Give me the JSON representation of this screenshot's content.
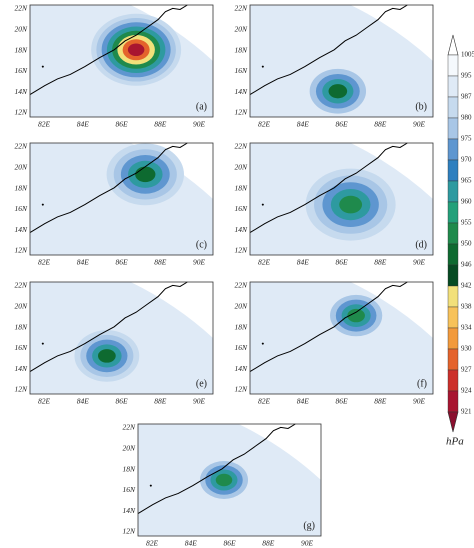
{
  "panels": [
    {
      "label": "(a)"
    },
    {
      "label": "(b)"
    },
    {
      "label": "(c)"
    },
    {
      "label": "(d)"
    },
    {
      "label": "(e)"
    },
    {
      "label": "(f)"
    },
    {
      "label": "(g)"
    }
  ],
  "axes": {
    "xticks": [
      "82E",
      "84E",
      "86E",
      "88E",
      "90E"
    ],
    "yticks": [
      "22N",
      "20N",
      "18N",
      "16N",
      "14N",
      "12N"
    ]
  },
  "colorbar": {
    "levels": [
      1005,
      995,
      987,
      980,
      975,
      970,
      965,
      960,
      955,
      950,
      946,
      942,
      938,
      934,
      930,
      927,
      924,
      921
    ],
    "colors": [
      "#f5f9fd",
      "#dfeaf6",
      "#c6daee",
      "#a8c6e6",
      "#5e96d0",
      "#2e7fbf",
      "#2e9aa0",
      "#23a07a",
      "#1f8a4c",
      "#0e6a30",
      "#064a22",
      "#f2e07a",
      "#f7c25a",
      "#f29a3c",
      "#e4632c",
      "#cc2f2a",
      "#a81530"
    ],
    "extend_colors": [
      "#ffffff",
      "#8a0e2e"
    ],
    "unit": "hPa"
  }
}
